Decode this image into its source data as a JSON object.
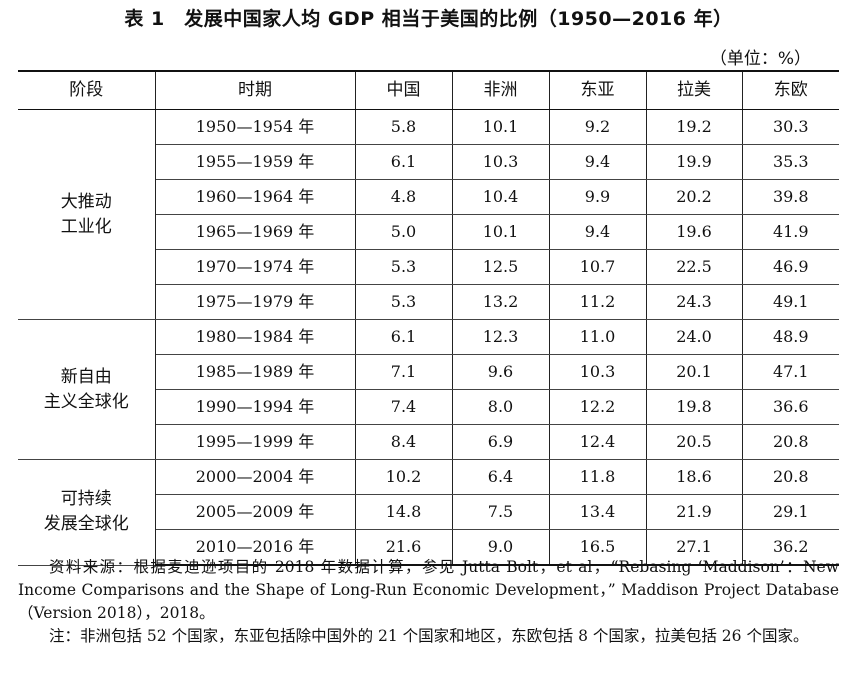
{
  "title": "表 1　发展中国家人均 GDP 相当于美国的比例（1950—2016 年）",
  "unit": "（单位：%）",
  "headers": [
    "阶段",
    "时期",
    "中国",
    "非洲",
    "东亚",
    "拉美",
    "东欧"
  ],
  "groups": [
    {
      "stage_line1": "大推动",
      "stage_line2": "工业化",
      "rows": [
        {
          "period": "1950—1954 年",
          "values": [
            "5.8",
            "10.1",
            "9.2",
            "19.2",
            "30.3"
          ]
        },
        {
          "period": "1955—1959 年",
          "values": [
            "6.1",
            "10.3",
            "9.4",
            "19.9",
            "35.3"
          ]
        },
        {
          "period": "1960—1964 年",
          "values": [
            "4.8",
            "10.4",
            "9.9",
            "20.2",
            "39.8"
          ]
        },
        {
          "period": "1965—1969 年",
          "values": [
            "5.0",
            "10.1",
            "9.4",
            "19.6",
            "41.9"
          ]
        },
        {
          "period": "1970—1974 年",
          "values": [
            "5.3",
            "12.5",
            "10.7",
            "22.5",
            "46.9"
          ]
        },
        {
          "period": "1975—1979 年",
          "values": [
            "5.3",
            "13.2",
            "11.2",
            "24.3",
            "49.1"
          ]
        }
      ]
    },
    {
      "stage_line1": "新自由",
      "stage_line2": "主义全球化",
      "rows": [
        {
          "period": "1980—1984 年",
          "values": [
            "6.1",
            "12.3",
            "11.0",
            "24.0",
            "48.9"
          ]
        },
        {
          "period": "1985—1989 年",
          "values": [
            "7.1",
            "9.6",
            "10.3",
            "20.1",
            "47.1"
          ]
        },
        {
          "period": "1990—1994 年",
          "values": [
            "7.4",
            "8.0",
            "12.2",
            "19.8",
            "36.6"
          ]
        },
        {
          "period": "1995—1999 年",
          "values": [
            "8.4",
            "6.9",
            "12.4",
            "20.5",
            "20.8"
          ]
        }
      ]
    },
    {
      "stage_line1": "可持续",
      "stage_line2": "发展全球化",
      "rows": [
        {
          "period": "2000—2004 年",
          "values": [
            "10.2",
            "6.4",
            "11.8",
            "18.6",
            "20.8"
          ]
        },
        {
          "period": "2005—2009 年",
          "values": [
            "14.8",
            "7.5",
            "13.4",
            "21.9",
            "29.1"
          ]
        },
        {
          "period": "2010—2016 年",
          "values": [
            "21.6",
            "9.0",
            "16.5",
            "27.1",
            "36.2"
          ]
        }
      ]
    }
  ],
  "source": "资料来源：根据麦迪逊项目的 2018 年数据计算，参见 Jutta Bolt，et al，“Rebasing ‘Maddison’：New Income Comparisons and the Shape of Long-Run Economic Development，” Maddison Project Database（Version 2018），2018。",
  "note": "注：非洲包括 52 个国家，东亚包括除中国外的 21 个国家和地区，东欧包括 8 个国家，拉美包括 26 个国家。"
}
